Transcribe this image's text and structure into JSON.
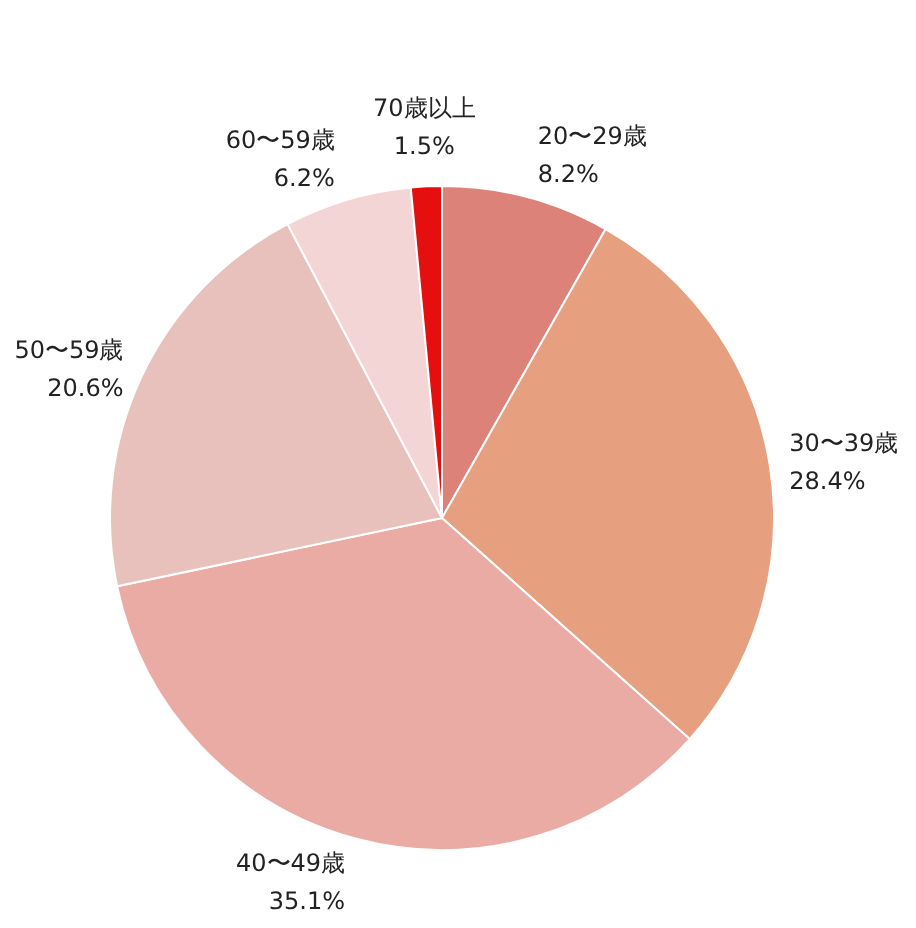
{
  "chart_data": {
    "type": "pie",
    "categories": [
      "20〜29歳",
      "30〜39歳",
      "40〜49歳",
      "50〜59歳",
      "60〜59歳",
      "70歳以上"
    ],
    "values": [
      8.2,
      28.4,
      35.1,
      20.6,
      6.2,
      1.5
    ],
    "value_labels": [
      "8.2%",
      "28.4%",
      "35.1%",
      "20.6%",
      "6.2%",
      "1.5%"
    ],
    "colors": [
      "#dc8279",
      "#e6a07f",
      "#ebaba5",
      "#e9c1bc",
      "#f3d5d5",
      "#e60f0f"
    ],
    "legend": false
  }
}
